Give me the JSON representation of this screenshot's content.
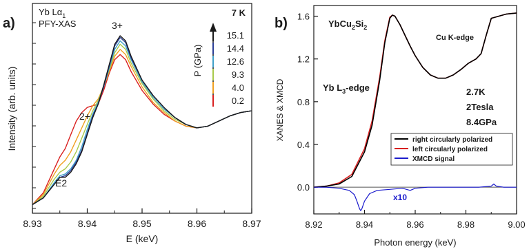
{
  "chart_data": [
    {
      "panel_label": "a)",
      "type": "line",
      "xlabel": "E (keV)",
      "ylabel": "Intensity (arb. units)",
      "xlim": [
        8.93,
        8.97
      ],
      "ylim": [
        0,
        1
      ],
      "x_ticks": [
        "8.93",
        "8.94",
        "8.95",
        "8.96",
        "8.97"
      ],
      "annotations": {
        "title_line1": "Yb Lα",
        "title_sub": "1",
        "title_line2": "PFY-XAS",
        "temperature": "7 K",
        "peak_3plus": "3+",
        "peak_2plus": "2+",
        "peak_e2": "E2",
        "pressure_axis": "P (GPa)"
      },
      "x": [
        8.93,
        8.932,
        8.934,
        8.935,
        8.936,
        8.937,
        8.938,
        8.939,
        8.94,
        8.941,
        8.942,
        8.943,
        8.944,
        8.945,
        8.946,
        8.947,
        8.948,
        8.95,
        8.952,
        8.954,
        8.956,
        8.958,
        8.96,
        8.962,
        8.964,
        8.966,
        8.968,
        8.97
      ],
      "series": [
        {
          "name": "15.1",
          "color": "#1a1a1a",
          "values": [
            0.01,
            0.05,
            0.13,
            0.17,
            0.17,
            0.2,
            0.25,
            0.32,
            0.42,
            0.52,
            0.6,
            0.71,
            0.83,
            0.95,
            1.0,
            0.97,
            0.88,
            0.74,
            0.65,
            0.58,
            0.52,
            0.48,
            0.46,
            0.47,
            0.5,
            0.53,
            0.55,
            0.56
          ]
        },
        {
          "name": "14.4",
          "color": "#2b3f97",
          "values": [
            0.01,
            0.05,
            0.13,
            0.17,
            0.18,
            0.21,
            0.26,
            0.33,
            0.43,
            0.53,
            0.6,
            0.7,
            0.82,
            0.94,
            0.99,
            0.96,
            0.87,
            0.74,
            0.65,
            0.58,
            0.52,
            0.48,
            0.46,
            0.47,
            0.5,
            0.53,
            0.55,
            0.56
          ]
        },
        {
          "name": "12.6",
          "color": "#3fa0c9",
          "values": [
            0.01,
            0.05,
            0.14,
            0.18,
            0.19,
            0.22,
            0.27,
            0.35,
            0.45,
            0.54,
            0.61,
            0.7,
            0.81,
            0.92,
            0.97,
            0.94,
            0.86,
            0.73,
            0.64,
            0.57,
            0.52,
            0.48,
            0.46,
            0.47,
            0.5,
            0.53,
            0.55,
            0.56
          ]
        },
        {
          "name": "9.3",
          "color": "#a8c94a",
          "values": [
            0.01,
            0.06,
            0.16,
            0.2,
            0.22,
            0.26,
            0.32,
            0.4,
            0.48,
            0.56,
            0.62,
            0.7,
            0.8,
            0.9,
            0.95,
            0.92,
            0.84,
            0.72,
            0.63,
            0.56,
            0.51,
            0.48,
            0.46,
            0.47,
            0.5,
            0.53,
            0.55,
            0.56
          ]
        },
        {
          "name": "4.0",
          "color": "#f0a020",
          "values": [
            0.01,
            0.07,
            0.19,
            0.24,
            0.27,
            0.32,
            0.39,
            0.46,
            0.53,
            0.59,
            0.63,
            0.7,
            0.79,
            0.88,
            0.92,
            0.89,
            0.82,
            0.7,
            0.61,
            0.55,
            0.5,
            0.47,
            0.46,
            0.47,
            0.5,
            0.53,
            0.55,
            0.56
          ]
        },
        {
          "name": "0.2",
          "color": "#d92020",
          "values": [
            0.01,
            0.08,
            0.22,
            0.29,
            0.34,
            0.42,
            0.5,
            0.55,
            0.58,
            0.59,
            0.6,
            0.68,
            0.78,
            0.86,
            0.89,
            0.86,
            0.79,
            0.68,
            0.6,
            0.54,
            0.5,
            0.47,
            0.46,
            0.47,
            0.5,
            0.53,
            0.55,
            0.56
          ]
        }
      ],
      "pressure_labels": [
        "15.1",
        "14.4",
        "12.6",
        "9.3",
        "4.0",
        "0.2"
      ]
    },
    {
      "panel_label": "b)",
      "type": "line",
      "xlabel": "Photon energy (keV)",
      "ylabel": "XANES & XMCD",
      "xlim": [
        8.92,
        9.0
      ],
      "ylim": [
        -0.25,
        1.7
      ],
      "x_ticks": [
        "8.92",
        "8.94",
        "8.96",
        "8.98",
        "9.00"
      ],
      "y_ticks": [
        "0.0",
        "0.4",
        "0.8",
        "1.2",
        "1.6"
      ],
      "y_tick_values": [
        0.0,
        0.4,
        0.8,
        1.2,
        1.6
      ],
      "annotations": {
        "compound_a": "YbCu",
        "compound_sub": "2",
        "compound_b": "Si",
        "compound_sub2": "2",
        "cu_edge": "Cu K-edge",
        "yb_edge_a": "Yb L",
        "yb_edge_sub": "3",
        "yb_edge_b": "-edge",
        "cond_temp": "2.7K",
        "cond_field": "2Tesla",
        "cond_pressure": "8.4GPa",
        "xmcd_scale": "x10"
      },
      "series": [
        {
          "name": "right circularly polarized",
          "color": "#000000",
          "x": [
            8.92,
            8.925,
            8.93,
            8.935,
            8.94,
            8.943,
            8.946,
            8.948,
            8.95,
            8.951,
            8.952,
            8.954,
            8.956,
            8.958,
            8.96,
            8.963,
            8.966,
            8.969,
            8.972,
            8.975,
            8.978,
            8.981,
            8.984,
            8.986,
            8.988,
            8.99,
            8.993,
            8.996,
            9.0
          ],
          "y": [
            0.0,
            0.01,
            0.03,
            0.1,
            0.33,
            0.58,
            1.0,
            1.35,
            1.58,
            1.61,
            1.6,
            1.52,
            1.42,
            1.32,
            1.23,
            1.12,
            1.05,
            1.02,
            1.02,
            1.05,
            1.1,
            1.16,
            1.2,
            1.25,
            1.42,
            1.58,
            1.6,
            1.62,
            1.63
          ]
        },
        {
          "name": "left circularly polarized",
          "color": "#d82020",
          "x": [
            8.92,
            8.925,
            8.93,
            8.935,
            8.94,
            8.943,
            8.946,
            8.948,
            8.95,
            8.951,
            8.952,
            8.954,
            8.956,
            8.958,
            8.96,
            8.963,
            8.966,
            8.969,
            8.972,
            8.975,
            8.978,
            8.981,
            8.984,
            8.986,
            8.988,
            8.99,
            8.993,
            8.996,
            9.0
          ],
          "y": [
            0.0,
            0.01,
            0.04,
            0.12,
            0.36,
            0.62,
            1.03,
            1.37,
            1.59,
            1.61,
            1.6,
            1.52,
            1.42,
            1.32,
            1.23,
            1.12,
            1.05,
            1.02,
            1.02,
            1.05,
            1.1,
            1.16,
            1.2,
            1.25,
            1.42,
            1.58,
            1.6,
            1.62,
            1.63
          ]
        },
        {
          "name": "XMCD signal",
          "color": "#1a1acc",
          "x": [
            8.92,
            8.925,
            8.93,
            8.934,
            8.936,
            8.937,
            8.938,
            8.9385,
            8.939,
            8.94,
            8.942,
            8.945,
            8.95,
            8.955,
            8.958,
            8.96,
            8.965,
            8.97,
            8.975,
            8.98,
            8.985,
            8.99,
            8.991,
            8.992,
            8.995,
            9.0
          ],
          "y": [
            0.0,
            0.0,
            -0.01,
            -0.03,
            -0.07,
            -0.13,
            -0.2,
            -0.22,
            -0.2,
            -0.13,
            -0.06,
            -0.03,
            -0.02,
            -0.01,
            -0.03,
            -0.01,
            0.0,
            0.0,
            0.0,
            0.0,
            0.0,
            0.01,
            0.03,
            0.01,
            0.0,
            0.0
          ]
        }
      ]
    }
  ]
}
